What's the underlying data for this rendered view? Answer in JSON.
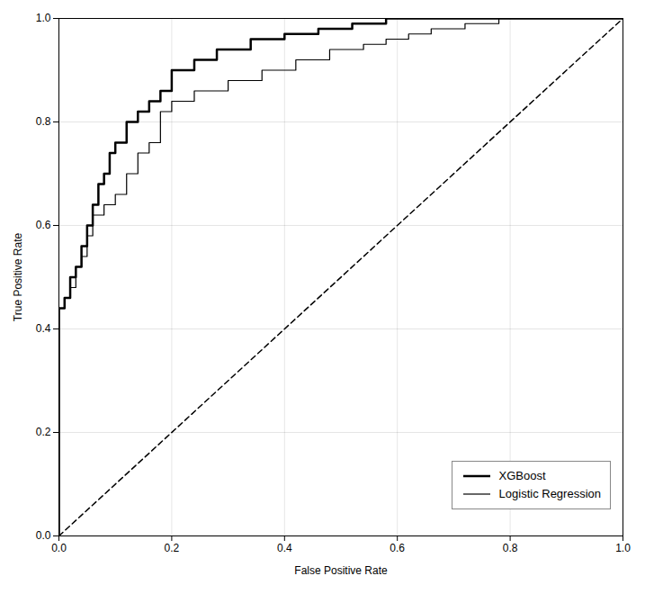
{
  "chart_data": {
    "type": "line",
    "xlabel": "False Positive Rate",
    "ylabel": "True Positive Rate",
    "xlim": [
      0.0,
      1.0
    ],
    "ylim": [
      0.0,
      1.0
    ],
    "xticks": [
      {
        "value": 0.0,
        "label": "0.0"
      },
      0.2,
      0.4,
      0.6,
      0.8,
      {
        "value": 1.0,
        "label": "1.0"
      }
    ],
    "yticks": [
      {
        "value": 0.0,
        "label": "0.0"
      },
      0.2,
      0.4,
      0.6,
      0.8,
      {
        "value": 1.0,
        "label": "1.0"
      }
    ],
    "grid": true,
    "legend": "lower right",
    "series": [
      {
        "name": "XGBoost",
        "type": "step",
        "color": "#000000",
        "line_style": "solid",
        "x": [
          0.0,
          0.0,
          0.0,
          0.0,
          0.0,
          0.01,
          0.01,
          0.02,
          0.02,
          0.03,
          0.03,
          0.04,
          0.04,
          0.05,
          0.05,
          0.06,
          0.06,
          0.07,
          0.07,
          0.08,
          0.08,
          0.09,
          0.09,
          0.1,
          0.1,
          0.12,
          0.12,
          0.14,
          0.14,
          0.16,
          0.16,
          0.18,
          0.18,
          0.2,
          0.2,
          0.24,
          0.24,
          0.28,
          0.28,
          0.34,
          0.34,
          0.4,
          0.4,
          0.46,
          0.46,
          0.52,
          0.52,
          0.58,
          0.58,
          0.64,
          0.64,
          0.7,
          0.7,
          0.76,
          0.76,
          0.8,
          0.8,
          1.0
        ],
        "values": [
          0.0,
          0.06,
          0.14,
          0.22,
          0.44,
          0.44,
          0.46,
          0.46,
          0.5,
          0.5,
          0.52,
          0.52,
          0.56,
          0.56,
          0.6,
          0.6,
          0.64,
          0.64,
          0.68,
          0.68,
          0.7,
          0.7,
          0.74,
          0.74,
          0.76,
          0.76,
          0.8,
          0.8,
          0.82,
          0.82,
          0.84,
          0.84,
          0.86,
          0.86,
          0.9,
          0.9,
          0.92,
          0.92,
          0.94,
          0.94,
          0.96,
          0.96,
          0.97,
          0.97,
          0.98,
          0.98,
          0.99,
          0.99,
          1.0,
          1.0,
          1.0,
          1.0,
          1.0,
          1.0,
          1.0,
          1.0,
          1.0,
          1.0
        ]
      },
      {
        "name": "Logistic Regression",
        "type": "step",
        "color": "#000000",
        "line_style": "solid",
        "x": [
          0.0,
          0.0,
          0.0,
          0.0,
          0.0,
          0.01,
          0.01,
          0.02,
          0.02,
          0.03,
          0.03,
          0.04,
          0.04,
          0.05,
          0.05,
          0.06,
          0.06,
          0.08,
          0.08,
          0.1,
          0.1,
          0.12,
          0.12,
          0.14,
          0.14,
          0.16,
          0.16,
          0.18,
          0.18,
          0.2,
          0.2,
          0.24,
          0.24,
          0.3,
          0.3,
          0.36,
          0.36,
          0.42,
          0.42,
          0.48,
          0.48,
          0.54,
          0.54,
          0.58,
          0.58,
          0.62,
          0.62,
          0.66,
          0.66,
          0.72,
          0.72,
          0.78,
          0.78,
          0.82,
          0.82,
          1.0
        ],
        "values": [
          0.0,
          0.06,
          0.12,
          0.18,
          0.44,
          0.44,
          0.46,
          0.46,
          0.48,
          0.48,
          0.52,
          0.52,
          0.54,
          0.54,
          0.58,
          0.58,
          0.62,
          0.62,
          0.64,
          0.64,
          0.66,
          0.66,
          0.7,
          0.7,
          0.74,
          0.74,
          0.76,
          0.76,
          0.82,
          0.82,
          0.84,
          0.84,
          0.86,
          0.86,
          0.88,
          0.88,
          0.9,
          0.9,
          0.92,
          0.92,
          0.94,
          0.94,
          0.95,
          0.95,
          0.96,
          0.96,
          0.97,
          0.97,
          0.98,
          0.98,
          0.99,
          0.99,
          1.0,
          1.0,
          1.0,
          1.0
        ]
      },
      {
        "type": "line",
        "color": "#000000",
        "line_style": "dashed",
        "x": [
          0.0,
          1.0
        ],
        "values": [
          0.0,
          1.0
        ]
      }
    ]
  }
}
